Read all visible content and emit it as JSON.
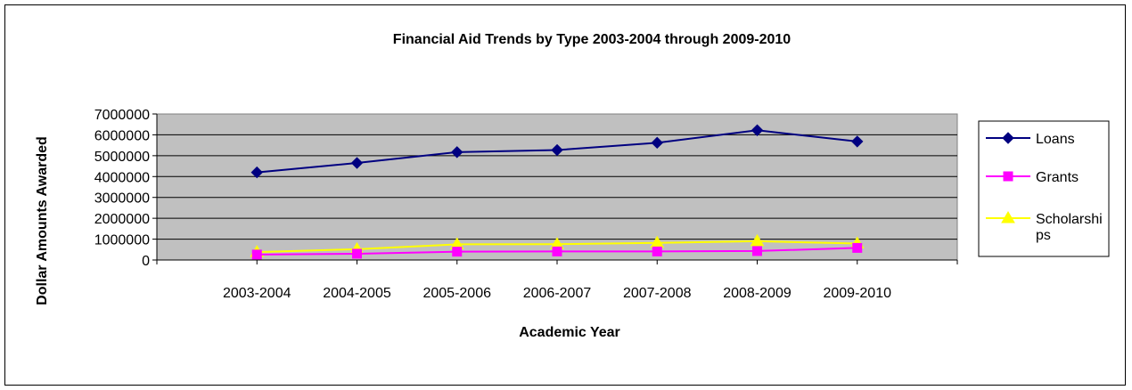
{
  "chart_data": {
    "type": "line",
    "title": "Financial Aid Trends by Type 2003-2004 through 2009-2010",
    "xlabel": "Academic Year",
    "ylabel": "Dollar Amounts Awarded",
    "categories": [
      "2003-2004",
      "2004-2005",
      "2005-2006",
      "2006-2007",
      "2007-2008",
      "2008-2009",
      "2009-2010"
    ],
    "ylim": [
      0,
      7000000
    ],
    "yticks": [
      "0",
      "1000000",
      "2000000",
      "3000000",
      "4000000",
      "5000000",
      "6000000",
      "7000000"
    ],
    "grid": true,
    "legend_position": "right",
    "plot_background": "#C0C0C0",
    "series": [
      {
        "name": "Loans",
        "color": "#000080",
        "marker": "diamond",
        "values": [
          4200000,
          4650000,
          5170000,
          5270000,
          5620000,
          6220000,
          5680000
        ]
      },
      {
        "name": "Grants",
        "color": "#FF00FF",
        "marker": "square",
        "values": [
          260000,
          300000,
          400000,
          410000,
          410000,
          430000,
          580000
        ]
      },
      {
        "name": "Scholarships",
        "legend_lines": [
          "Scholarshi",
          "ps"
        ],
        "color": "#FFFF00",
        "marker": "triangle",
        "values": [
          380000,
          520000,
          750000,
          760000,
          820000,
          900000,
          790000
        ]
      }
    ]
  }
}
